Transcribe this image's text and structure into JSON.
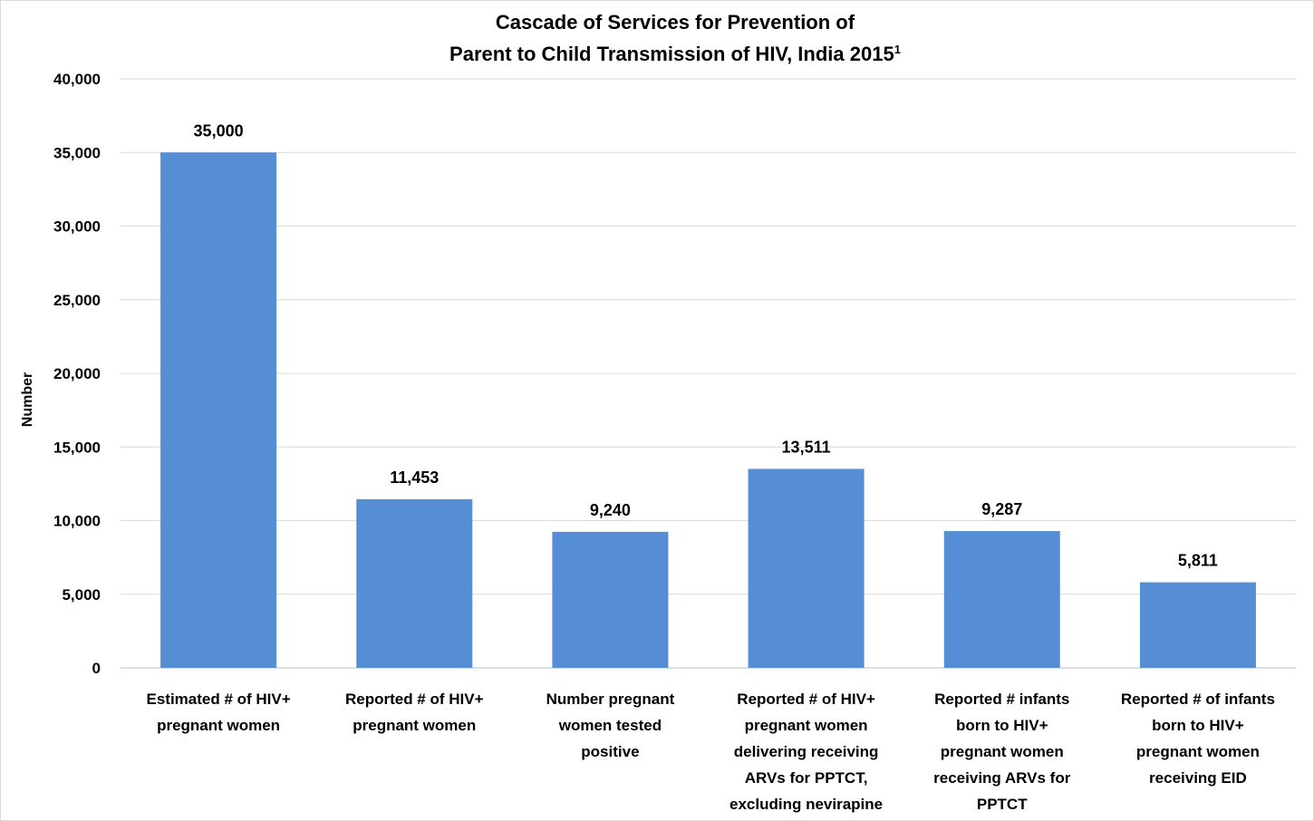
{
  "chart_data": {
    "type": "bar",
    "title": "Cascade of Services for Prevention of Parent to Child Transmission of HIV, India 2015",
    "title_lines": [
      "Cascade of Services for Prevention of",
      "Parent to Child Transmission of HIV, India 2015"
    ],
    "title_footnote": "1",
    "xlabel": "",
    "ylabel": "Number",
    "ylim": [
      0,
      40000
    ],
    "ytick_step": 5000,
    "yticks": [
      "0",
      "5,000",
      "10,000",
      "15,000",
      "20,000",
      "25,000",
      "30,000",
      "35,000",
      "40,000"
    ],
    "grid": true,
    "legend": "none",
    "bar_color": "#558ed5",
    "categories": [
      [
        "Estimated # of HIV+",
        "pregnant women"
      ],
      [
        "Reported # of HIV+",
        "pregnant women"
      ],
      [
        "Number pregnant",
        "women tested",
        "positive"
      ],
      [
        "Reported # of HIV+",
        "pregnant women",
        "delivering receiving",
        "ARVs for PPTCT,",
        "excluding nevirapine"
      ],
      [
        "Reported # infants",
        "born to HIV+",
        "pregnant women",
        "receiving ARVs for",
        "PPTCT"
      ],
      [
        "Reported # of infants",
        "born to HIV+",
        "pregnant women",
        "receiving EID"
      ]
    ],
    "values": [
      35000,
      11453,
      9240,
      13511,
      9287,
      5811
    ],
    "data_labels": [
      "35,000",
      "11,453",
      "9,240",
      "13,511",
      "9,287",
      "5,811"
    ]
  }
}
